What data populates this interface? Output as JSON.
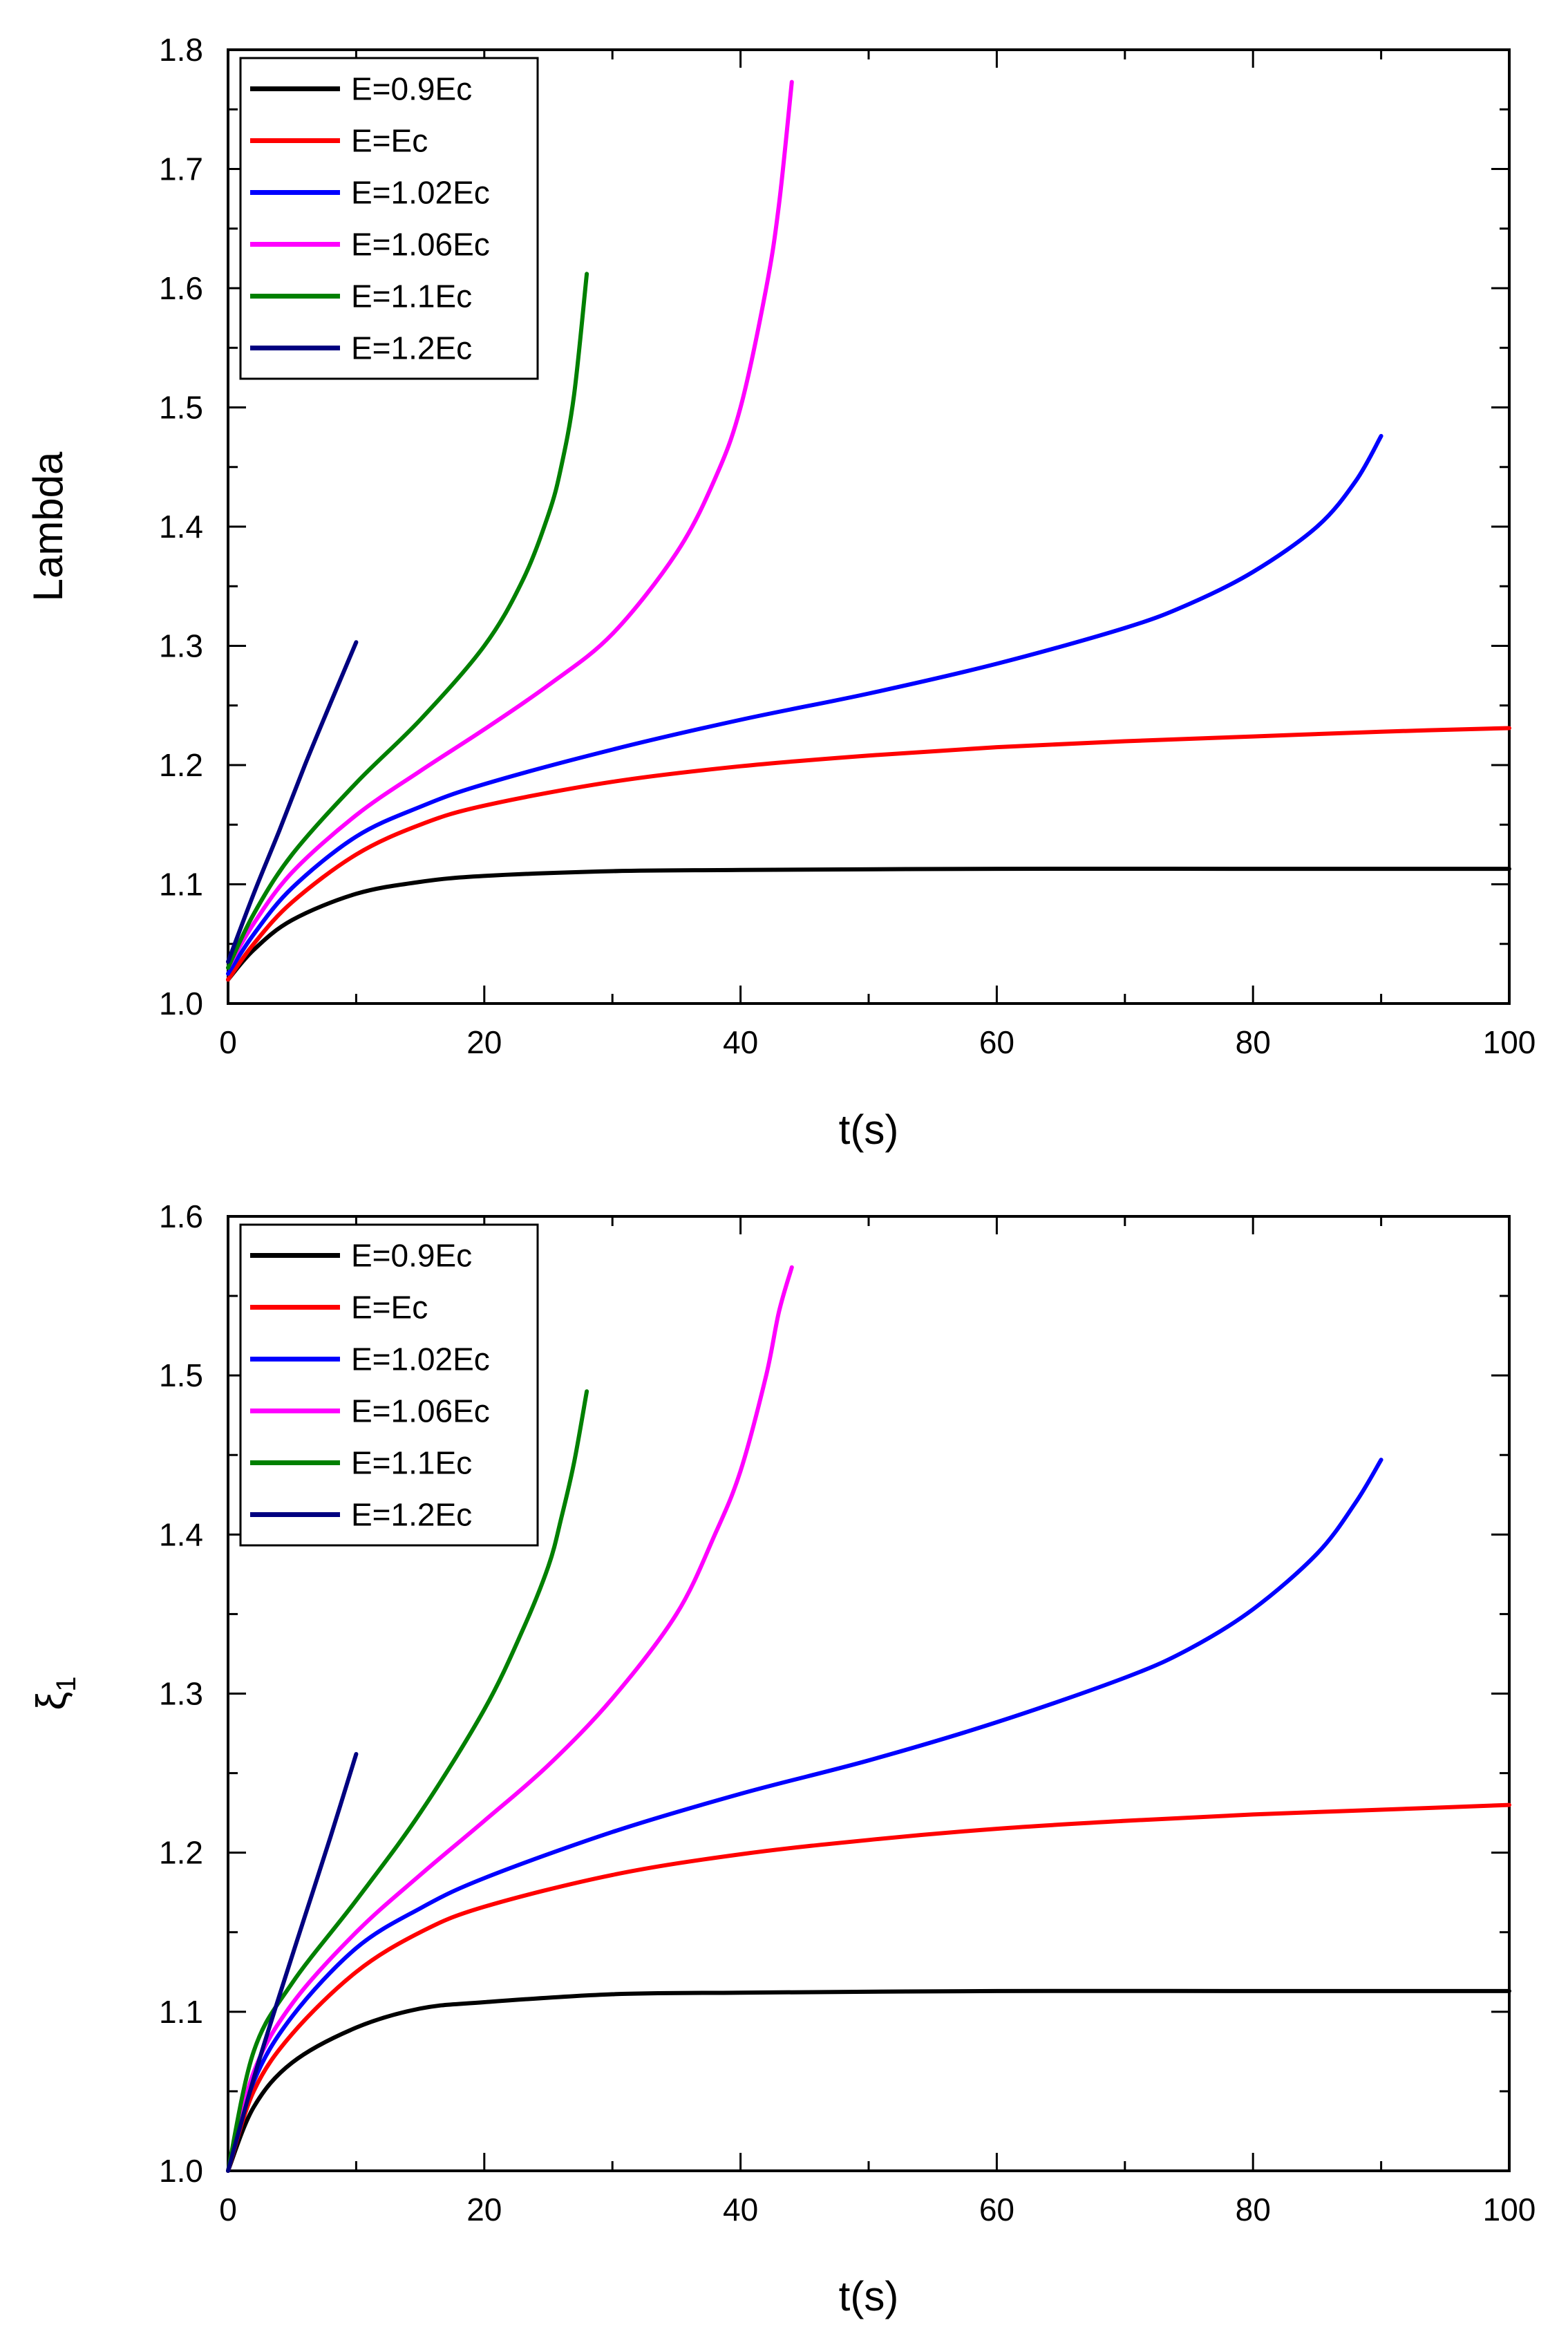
{
  "chart_data": [
    {
      "type": "line",
      "title": "",
      "xlabel": "t(s)",
      "ylabel": "Lambda",
      "xlim": [
        0,
        100
      ],
      "ylim": [
        1.0,
        1.8
      ],
      "xticks": [
        0,
        20,
        40,
        60,
        80,
        100
      ],
      "xtick_labels": [
        "0",
        "20",
        "40",
        "60",
        "80",
        "100"
      ],
      "yticks": [
        1.0,
        1.1,
        1.2,
        1.3,
        1.4,
        1.5,
        1.6,
        1.7,
        1.8
      ],
      "ytick_labels": [
        "1.0",
        "1.1",
        "1.2",
        "1.3",
        "1.4",
        "1.5",
        "1.6",
        "1.7",
        "1.8"
      ],
      "grid": false,
      "legend_position": "top-left",
      "series": [
        {
          "name": "E=0.9Ec",
          "color": "#000000",
          "x": [
            0,
            2,
            5,
            10,
            15,
            20,
            30,
            40,
            60,
            80,
            100
          ],
          "values": [
            1.02,
            1.045,
            1.07,
            1.092,
            1.102,
            1.107,
            1.111,
            1.112,
            1.113,
            1.113,
            1.113
          ]
        },
        {
          "name": "E=Ec",
          "color": "#ff0000",
          "x": [
            0,
            2,
            5,
            10,
            15,
            20,
            30,
            40,
            50,
            60,
            70,
            80,
            90,
            100
          ],
          "values": [
            1.02,
            1.05,
            1.085,
            1.125,
            1.15,
            1.166,
            1.186,
            1.199,
            1.208,
            1.215,
            1.22,
            1.224,
            1.228,
            1.231
          ]
        },
        {
          "name": "E=1.02Ec",
          "color": "#0000ff",
          "x": [
            0,
            2,
            5,
            10,
            15,
            20,
            30,
            40,
            50,
            60,
            70,
            75,
            80,
            85,
            88,
            90
          ],
          "values": [
            1.025,
            1.058,
            1.097,
            1.14,
            1.165,
            1.184,
            1.213,
            1.238,
            1.26,
            1.285,
            1.315,
            1.335,
            1.362,
            1.4,
            1.438,
            1.476
          ]
        },
        {
          "name": "E=1.06Ec",
          "color": "#ff00ff",
          "x": [
            0,
            2,
            5,
            10,
            15,
            20,
            25,
            30,
            35,
            38,
            40,
            42,
            43,
            44
          ],
          "values": [
            1.03,
            1.067,
            1.11,
            1.158,
            1.195,
            1.23,
            1.267,
            1.31,
            1.378,
            1.44,
            1.5,
            1.6,
            1.67,
            1.773
          ]
        },
        {
          "name": "E=1.1Ec",
          "color": "#008000",
          "x": [
            0,
            2,
            5,
            10,
            15,
            20,
            23,
            25,
            26,
            27,
            28
          ],
          "values": [
            1.03,
            1.075,
            1.125,
            1.185,
            1.238,
            1.3,
            1.355,
            1.41,
            1.45,
            1.51,
            1.612
          ]
        },
        {
          "name": "E=1.2Ec",
          "color": "#000080",
          "x": [
            0,
            2,
            4,
            6,
            8,
            10
          ],
          "values": [
            1.035,
            1.092,
            1.145,
            1.2,
            1.252,
            1.303
          ]
        }
      ]
    },
    {
      "type": "line",
      "title": "",
      "xlabel": "t(s)",
      "ylabel": "ξ1",
      "ylabel_main": "ξ",
      "ylabel_sub": "1",
      "xlim": [
        0,
        100
      ],
      "ylim": [
        1.0,
        1.6
      ],
      "xticks": [
        0,
        20,
        40,
        60,
        80,
        100
      ],
      "xtick_labels": [
        "0",
        "20",
        "40",
        "60",
        "80",
        "100"
      ],
      "yticks": [
        1.0,
        1.1,
        1.2,
        1.3,
        1.4,
        1.5,
        1.6
      ],
      "ytick_labels": [
        "1.0",
        "1.1",
        "1.2",
        "1.3",
        "1.4",
        "1.5",
        "1.6"
      ],
      "grid": false,
      "legend_position": "top-left",
      "series": [
        {
          "name": "E=0.9Ec",
          "color": "#000000",
          "x": [
            0,
            2,
            5,
            10,
            15,
            20,
            30,
            40,
            60,
            80,
            100
          ],
          "values": [
            1.0,
            1.04,
            1.068,
            1.09,
            1.102,
            1.106,
            1.111,
            1.112,
            1.113,
            1.113,
            1.113
          ]
        },
        {
          "name": "E=Ec",
          "color": "#ff0000",
          "x": [
            0,
            2,
            5,
            10,
            15,
            20,
            30,
            40,
            50,
            60,
            70,
            80,
            90,
            100
          ],
          "values": [
            1.0,
            1.05,
            1.086,
            1.125,
            1.15,
            1.166,
            1.186,
            1.199,
            1.208,
            1.215,
            1.22,
            1.224,
            1.227,
            1.23
          ]
        },
        {
          "name": "E=1.02Ec",
          "color": "#0000ff",
          "x": [
            0,
            2,
            5,
            10,
            15,
            20,
            30,
            40,
            50,
            60,
            70,
            75,
            80,
            85,
            88,
            90
          ],
          "values": [
            1.0,
            1.056,
            1.097,
            1.14,
            1.165,
            1.184,
            1.213,
            1.237,
            1.258,
            1.282,
            1.31,
            1.328,
            1.353,
            1.388,
            1.42,
            1.447
          ]
        },
        {
          "name": "E=1.06Ec",
          "color": "#ff00ff",
          "x": [
            0,
            2,
            5,
            10,
            15,
            20,
            25,
            30,
            35,
            38,
            40,
            42,
            43,
            44
          ],
          "values": [
            1.0,
            1.062,
            1.105,
            1.15,
            1.186,
            1.22,
            1.255,
            1.297,
            1.35,
            1.4,
            1.44,
            1.5,
            1.54,
            1.568
          ]
        },
        {
          "name": "E=1.1Ec",
          "color": "#008000",
          "x": [
            0,
            2,
            5,
            10,
            15,
            20,
            23,
            25,
            26,
            27,
            28
          ],
          "values": [
            1.0,
            1.075,
            1.118,
            1.17,
            1.225,
            1.29,
            1.34,
            1.38,
            1.41,
            1.445,
            1.49
          ]
        },
        {
          "name": "E=1.2Ec",
          "color": "#000080",
          "x": [
            0,
            2,
            4,
            6,
            8,
            10
          ],
          "values": [
            1.0,
            1.058,
            1.11,
            1.16,
            1.21,
            1.262
          ]
        }
      ]
    }
  ]
}
